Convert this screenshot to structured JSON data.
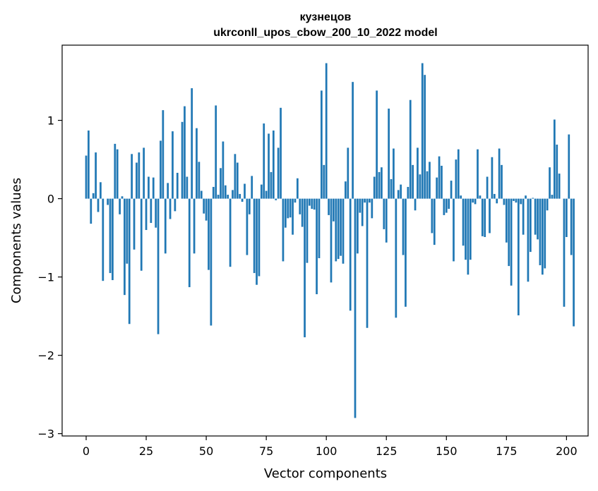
{
  "chart_data": {
    "type": "bar",
    "title_lines": [
      "кузнецов",
      "ukrconll_upos_cbow_200_10_2022 model"
    ],
    "xlabel": "Vector components",
    "ylabel": "Components values",
    "xlim": [
      -10,
      209
    ],
    "ylim": [
      -3.03,
      1.96
    ],
    "xticks": [
      0,
      25,
      50,
      75,
      100,
      125,
      150,
      175,
      200
    ],
    "yticks": [
      -3,
      -2,
      -1,
      0,
      1
    ],
    "ytick_labels": [
      "−3",
      "−2",
      "−1",
      "0",
      "1"
    ],
    "grid": false,
    "legend": "none",
    "bar_color": "#1f77b4",
    "values": [
      0.55,
      0.87,
      -0.32,
      0.07,
      0.59,
      -0.17,
      0.21,
      -1.05,
      0.0,
      -0.08,
      -0.95,
      -1.04,
      0.7,
      0.63,
      -0.2,
      0.03,
      -1.23,
      -0.83,
      -1.6,
      0.57,
      -0.65,
      0.46,
      0.59,
      -0.92,
      0.65,
      -0.4,
      0.28,
      -0.31,
      0.27,
      -0.37,
      -1.73,
      0.74,
      1.13,
      -0.7,
      0.2,
      -0.26,
      0.86,
      -0.16,
      0.33,
      0.0,
      0.98,
      1.18,
      0.28,
      -1.13,
      1.41,
      -0.7,
      0.9,
      0.47,
      0.1,
      -0.19,
      -0.28,
      -0.91,
      -1.62,
      0.15,
      1.19,
      0.05,
      0.39,
      0.73,
      0.17,
      0.05,
      -0.87,
      0.11,
      0.57,
      0.46,
      0.06,
      -0.04,
      0.19,
      -0.72,
      -0.2,
      0.29,
      -0.95,
      -1.1,
      -0.99,
      0.18,
      0.96,
      0.1,
      0.83,
      0.34,
      0.87,
      -0.02,
      0.65,
      1.16,
      -0.8,
      -0.37,
      -0.25,
      -0.24,
      -0.46,
      -0.05,
      0.26,
      -0.2,
      -0.36,
      -1.77,
      -0.82,
      -0.09,
      -0.13,
      -0.14,
      -1.22,
      -0.76,
      1.38,
      0.43,
      1.73,
      -0.21,
      -1.07,
      -0.29,
      -0.8,
      -0.77,
      -0.73,
      -0.83,
      0.22,
      0.65,
      -1.43,
      1.49,
      -2.8,
      -0.7,
      -0.18,
      -0.35,
      -0.05,
      -1.65,
      -0.05,
      -0.25,
      0.28,
      1.38,
      0.34,
      0.4,
      -0.39,
      -0.56,
      1.15,
      0.25,
      0.64,
      -1.52,
      0.11,
      0.18,
      -0.72,
      -1.38,
      0.15,
      1.26,
      0.43,
      -0.15,
      0.65,
      0.31,
      1.73,
      1.58,
      0.35,
      0.47,
      -0.44,
      -0.59,
      0.27,
      0.54,
      0.42,
      -0.21,
      -0.18,
      -0.13,
      0.23,
      -0.8,
      0.5,
      0.63,
      0.04,
      -0.6,
      -0.78,
      -0.97,
      -0.78,
      -0.05,
      -0.07,
      0.63,
      0.04,
      -0.48,
      -0.49,
      0.28,
      -0.44,
      0.53,
      0.06,
      -0.06,
      0.64,
      0.43,
      -0.08,
      -0.56,
      -0.86,
      -1.11,
      -0.03,
      -0.05,
      -1.49,
      -0.07,
      -0.46,
      0.04,
      -1.06,
      -0.68,
      0.01,
      -0.46,
      -0.52,
      -0.85,
      -0.97,
      -0.89,
      -0.15,
      0.4,
      0.05,
      1.01,
      0.69,
      0.32,
      0.0,
      -1.38,
      -0.49,
      0.82,
      -0.72,
      -1.63
    ]
  }
}
